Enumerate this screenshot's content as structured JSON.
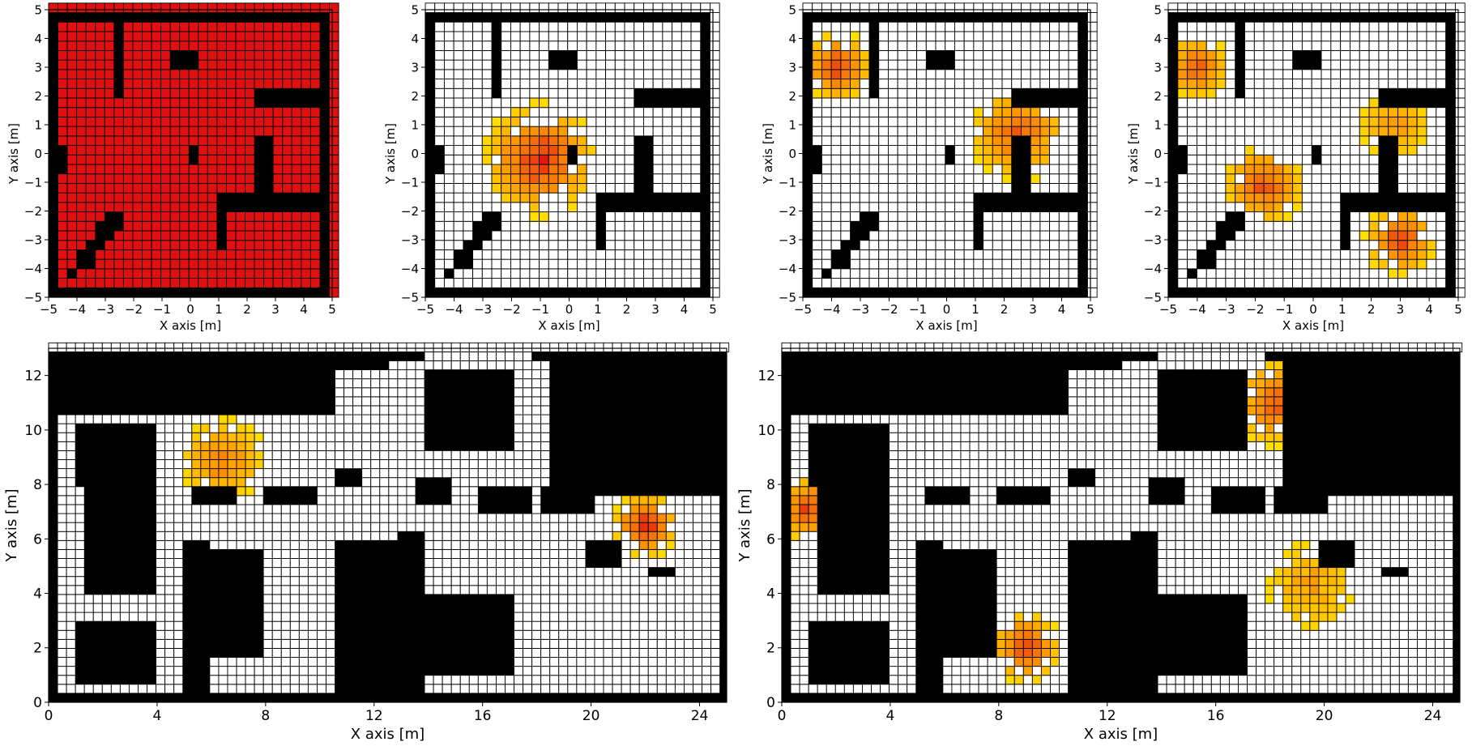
{
  "chart_data": [
    {
      "type": "heatmap",
      "title": "",
      "xlabel": "X axis [m]",
      "ylabel": "Y axis [m]",
      "xlim": [
        -5,
        5
      ],
      "ylim": [
        -5,
        5
      ],
      "xticks": [
        -5,
        -4,
        -3,
        -2,
        -1,
        0,
        1,
        2,
        3,
        4,
        5
      ],
      "yticks": [
        -5,
        -4,
        -3,
        -2,
        -1,
        0,
        1,
        2,
        3,
        4,
        5
      ],
      "cell_size": 0.33,
      "map": "small_room",
      "uniform_fill": "#e01010",
      "probability_blobs": []
    },
    {
      "type": "heatmap",
      "title": "",
      "xlabel": "X axis [m]",
      "ylabel": "Y axis [m]",
      "xlim": [
        -5,
        5
      ],
      "ylim": [
        -5,
        5
      ],
      "xticks": [
        -5,
        -4,
        -3,
        -2,
        -1,
        0,
        1,
        2,
        3,
        4,
        5
      ],
      "yticks": [
        -5,
        -4,
        -3,
        -2,
        -1,
        0,
        1,
        2,
        3,
        4,
        5
      ],
      "cell_size": 0.33,
      "map": "small_room",
      "uniform_fill": "",
      "probability_blobs": [
        {
          "cx": -1.0,
          "cy": -0.2,
          "radius": 2.1,
          "peak": 1.0
        }
      ]
    },
    {
      "type": "heatmap",
      "title": "",
      "xlabel": "X axis [m]",
      "ylabel": "Y axis [m]",
      "xlim": [
        -5,
        5
      ],
      "ylim": [
        -5,
        5
      ],
      "xticks": [
        -5,
        -4,
        -3,
        -2,
        -1,
        0,
        1,
        2,
        3,
        4,
        5
      ],
      "yticks": [
        -5,
        -4,
        -3,
        -2,
        -1,
        0,
        1,
        2,
        3,
        4,
        5
      ],
      "cell_size": 0.33,
      "map": "small_room",
      "uniform_fill": "",
      "probability_blobs": [
        {
          "cx": -3.8,
          "cy": 3.0,
          "radius": 1.3,
          "peak": 0.9
        },
        {
          "cx": 2.5,
          "cy": 0.7,
          "radius": 1.8,
          "peak": 0.75
        }
      ]
    },
    {
      "type": "heatmap",
      "title": "",
      "xlabel": "X axis [m]",
      "ylabel": "Y axis [m]",
      "xlim": [
        -5,
        5
      ],
      "ylim": [
        -5,
        5
      ],
      "xticks": [
        -5,
        -4,
        -3,
        -2,
        -1,
        0,
        1,
        2,
        3,
        4,
        5
      ],
      "yticks": [
        -5,
        -4,
        -3,
        -2,
        -1,
        0,
        1,
        2,
        3,
        4,
        5
      ],
      "cell_size": 0.33,
      "map": "small_room",
      "uniform_fill": "",
      "probability_blobs": [
        {
          "cx": -4.0,
          "cy": 3.0,
          "radius": 1.2,
          "peak": 0.75
        },
        {
          "cx": 2.8,
          "cy": 1.0,
          "radius": 1.3,
          "peak": 0.5
        },
        {
          "cx": -1.7,
          "cy": -1.1,
          "radius": 1.5,
          "peak": 0.8
        },
        {
          "cx": 3.0,
          "cy": -3.0,
          "radius": 1.3,
          "peak": 0.95
        }
      ]
    },
    {
      "type": "heatmap",
      "title": "",
      "xlabel": "X axis [m]",
      "ylabel": "Y axis [m]",
      "xlim": [
        0,
        25
      ],
      "ylim": [
        0,
        13
      ],
      "xticks": [
        0,
        4,
        8,
        12,
        16,
        20,
        24
      ],
      "yticks": [
        0,
        2,
        4,
        6,
        8,
        10,
        12
      ],
      "cell_size": 0.33,
      "map": "large_office",
      "uniform_fill": "",
      "probability_blobs": [
        {
          "cx": 6.4,
          "cy": 8.9,
          "radius": 1.7,
          "peak": 0.55
        },
        {
          "cx": 22.0,
          "cy": 6.5,
          "radius": 1.3,
          "peak": 1.0
        }
      ]
    },
    {
      "type": "heatmap",
      "title": "",
      "xlabel": "X axis [m]",
      "ylabel": "Y axis [m]",
      "xlim": [
        0,
        25
      ],
      "ylim": [
        0,
        13
      ],
      "xticks": [
        0,
        4,
        8,
        12,
        16,
        20,
        24
      ],
      "yticks": [
        0,
        2,
        4,
        6,
        8,
        10,
        12
      ],
      "cell_size": 0.33,
      "map": "large_office",
      "uniform_fill": "",
      "probability_blobs": [
        {
          "cx": 1.0,
          "cy": 7.1,
          "radius": 1.3,
          "peak": 0.9
        },
        {
          "cx": 9.0,
          "cy": 2.0,
          "radius": 1.4,
          "peak": 0.9
        },
        {
          "cx": 18.2,
          "cy": 11.0,
          "radius": 1.7,
          "peak": 0.75
        },
        {
          "cx": 19.5,
          "cy": 4.3,
          "radius": 1.8,
          "peak": 0.35
        }
      ]
    }
  ]
}
